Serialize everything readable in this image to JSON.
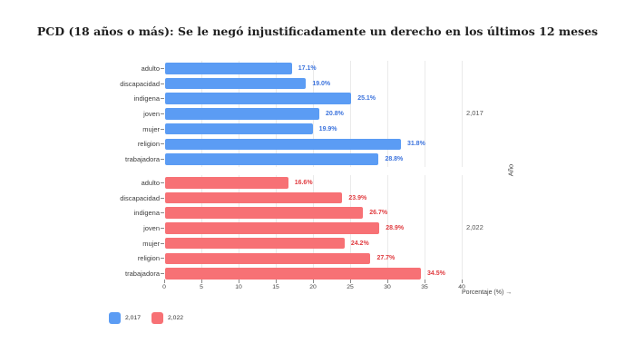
{
  "title": "PCD (18 años o más): Se le negó injustificadamente un derecho en los últimos 12 meses",
  "chart_data": {
    "type": "bar",
    "orientation": "horizontal",
    "categories": [
      "adulto",
      "discapacidad",
      "indigena",
      "joven",
      "mujer",
      "religion",
      "trabajadora"
    ],
    "series": [
      {
        "name": "2,017",
        "facet_label": "2,017",
        "color": "#5b9cf4",
        "label_color": "#3d74dd",
        "values": [
          17.1,
          19.0,
          25.1,
          20.8,
          19.9,
          31.8,
          28.8
        ]
      },
      {
        "name": "2,022",
        "facet_label": "2,022",
        "color": "#f77175",
        "label_color": "#e03c40",
        "values": [
          16.6,
          23.9,
          26.7,
          28.9,
          24.2,
          27.7,
          34.5
        ]
      }
    ],
    "xlabel": "Porcentaje (%) →",
    "facet_axis_label": "Año",
    "xlim": [
      0,
      40
    ],
    "xticks": [
      0,
      5,
      10,
      15,
      20,
      25,
      30,
      35,
      40
    ],
    "grid": true,
    "value_suffix": "%",
    "legend_position": "bottom-left"
  }
}
